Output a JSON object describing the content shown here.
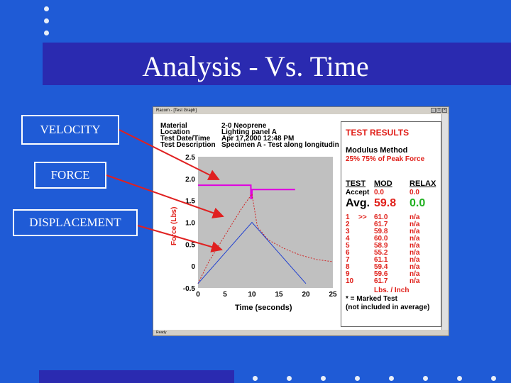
{
  "slide": {
    "title": "Analysis - Vs. Time",
    "labels": {
      "velocity": "VELOCITY",
      "force": "FORCE",
      "displacement": "DISPLACEMENT"
    }
  },
  "window": {
    "title": "Racom - [Test Graph]",
    "status": "Ready"
  },
  "test_info": {
    "keys": [
      "Material",
      "Location",
      "Test Date/Time",
      "Test Description"
    ],
    "values": [
      "2-0 Neoprene",
      "Lighting panel A",
      "Apr 17,2000 12:48 PM",
      "Specimen A - Test along longitudin"
    ]
  },
  "results": {
    "heading": "TEST RESULTS",
    "method": "Modulus Method",
    "method_range": "25% 75% of Peak Force",
    "col_test": "TEST",
    "col_mod": "MOD",
    "col_relax": "RELAX",
    "accept_label": "Accept",
    "accept_mod": "0.0",
    "accept_relax": "0.0",
    "avg_label": "Avg.",
    "avg_mod": "59.8",
    "avg_relax": "0.0",
    "rows": [
      {
        "n": "1",
        "mark": ">>",
        "mod": "61.0",
        "relax": "n/a"
      },
      {
        "n": "2",
        "mark": "",
        "mod": "61.7",
        "relax": "n/a"
      },
      {
        "n": "3",
        "mark": "",
        "mod": "59.8",
        "relax": "n/a"
      },
      {
        "n": "4",
        "mark": "",
        "mod": "60.0",
        "relax": "n/a"
      },
      {
        "n": "5",
        "mark": "",
        "mod": "58.9",
        "relax": "n/a"
      },
      {
        "n": "6",
        "mark": "",
        "mod": "55.2",
        "relax": "n/a"
      },
      {
        "n": "7",
        "mark": "",
        "mod": "61.1",
        "relax": "n/a"
      },
      {
        "n": "8",
        "mark": "",
        "mod": "59.4",
        "relax": "n/a"
      },
      {
        "n": "9",
        "mark": "",
        "mod": "59.6",
        "relax": "n/a"
      },
      {
        "n": "10",
        "mark": "",
        "mod": "61.7",
        "relax": "n/a"
      }
    ],
    "units": "Lbs. / Inch",
    "note1": "* = Marked Test",
    "note2": "(not included in average)"
  },
  "chart_data": {
    "type": "line",
    "xlabel": "Time (seconds)",
    "ylabel": "Force (Lbs)",
    "xlim": [
      0,
      25
    ],
    "ylim": [
      -0.5,
      2.5
    ],
    "x_ticks": [
      "0",
      "5",
      "10",
      "15",
      "20",
      "25"
    ],
    "y_ticks": [
      "2.5",
      "2.0",
      "1.5",
      "1.0",
      "0.5",
      "0",
      "-0.5"
    ],
    "series": [
      {
        "color": "#e000e0",
        "x": [
          0,
          9.8,
          9.8,
          10.0,
          10.0,
          18
        ],
        "y": [
          1.85,
          1.85,
          1.55,
          1.55,
          1.75,
          1.75
        ]
      },
      {
        "color": "#d02020",
        "x": [
          0,
          2,
          5,
          8,
          10,
          11,
          13,
          16,
          19,
          22,
          25
        ],
        "y": [
          -0.4,
          0.1,
          0.7,
          1.3,
          1.65,
          0.9,
          0.6,
          0.4,
          0.25,
          0.15,
          0.1
        ]
      },
      {
        "color": "#2040d0",
        "x": [
          0,
          5,
          10,
          15,
          20
        ],
        "y": [
          -0.4,
          0.3,
          1.0,
          0.3,
          -0.4
        ]
      }
    ]
  }
}
